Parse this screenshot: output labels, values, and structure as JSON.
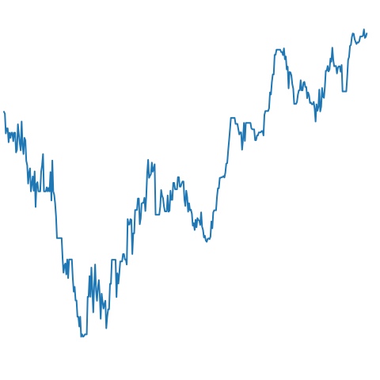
{
  "chart_data": {
    "type": "line",
    "title": "",
    "xlabel": "",
    "ylabel": "",
    "axes_visible": false,
    "grid": false,
    "legend": "none",
    "colors": {
      "background": "#ffffff",
      "line": "#1f77b4"
    },
    "xlim": [
      0,
      400
    ],
    "ylim": [
      0,
      100
    ],
    "series": [
      {
        "values": [
          73.1,
          72.5,
          66.7,
          68.2,
          68.2,
          64.1,
          66.9,
          65.4,
          66.9,
          66.9,
          64.4,
          66.9,
          66.9,
          61.1,
          61.9,
          69.4,
          66.5,
          63.8,
          61.7,
          70.2,
          63.2,
          60.6,
          65.4,
          64.7,
          58.6,
          57.3,
          51.9,
          55.1,
          56.4,
          49.6,
          51.8,
          54.0,
          49.8,
          55.5,
          45.0,
          51.8,
          52.3,
          49.6,
          49.6,
          49.6,
          55.4,
          57.4,
          60.6,
          49.6,
          49.6,
          49.6,
          50.8,
          49.6,
          50.6,
          49.6,
          55.3,
          46.9,
          58.7,
          49.6,
          48.6,
          46.1,
          42.2,
          35.8,
          35.8,
          35.8,
          35.8,
          35.8,
          35.8,
          30.0,
          25.6,
          27.7,
          28.3,
          25.1,
          29.5,
          24.0,
          29.5,
          29.5,
          29.5,
          29.5,
          23.9,
          20.0,
          21.4,
          17.4,
          17.4,
          12.6,
          12.6,
          9.7,
          12.6,
          6.7,
          7.4,
          6.7,
          6.9,
          7.4,
          7.4,
          7.4,
          18.5,
          18.5,
          24.6,
          18.5,
          27.1,
          20.6,
          13.9,
          21.8,
          28.0,
          20.4,
          17.3,
          21.2,
          23.4,
          18.9,
          12.0,
          19.4,
          17.1,
          15.0,
          16.4,
          17.3,
          9.2,
          12.6,
          14.8,
          14.8,
          22.3,
          22.3,
          29.4,
          29.4,
          29.4,
          29.4,
          29.4,
          18.4,
          25.4,
          22.4,
          25.4,
          28.9,
          28.9,
          28.9,
          31.1,
          31.1,
          29.5,
          29.5,
          28.0,
          41.4,
          39.8,
          39.8,
          41.4,
          41.2,
          31.1,
          37.2,
          37.2,
          44.1,
          44.1,
          44.1,
          47.5,
          47.5,
          39.9,
          41.6,
          46.0,
          46.2,
          46.2,
          47.7,
          43.8,
          48.2,
          55.1,
          58.9,
          53.6,
          54.2,
          54.7,
          58.1,
          55.4,
          56.3,
          57.6,
          42.7,
          42.7,
          42.7,
          42.7,
          42.7,
          45.1,
          50.0,
          48.3,
          47.6,
          45.2,
          43.7,
          43.7,
          43.7,
          48.4,
          43.6,
          43.9,
          49.8,
          47.1,
          47.1,
          52.1,
          52.1,
          50.2,
          50.2,
          50.2,
          53.8,
          53.8,
          51.0,
          51.0,
          51.9,
          52.5,
          52.5,
          47.2,
          45.3,
          49.8,
          47.9,
          43.6,
          46.1,
          44.0,
          44.2,
          43.0,
          39.5,
          40.2,
          38.2,
          41.2,
          39.0,
          41.7,
          41.1,
          41.0,
          39.7,
          43.4,
          39.2,
          38.2,
          36.0,
          36.5,
          35.1,
          34.7,
          35.6,
          35.7,
          35.5,
          36.2,
          40.7,
          38.7,
          43.4,
          44.0,
          44.0,
          44.0,
          47.9,
          50.5,
          50.5,
          53.6,
          53.6,
          53.8,
          53.8,
          54.1,
          53.7,
          55.1,
          57.8,
          57.9,
          61.5,
          64.6,
          67.9,
          71.3,
          71.3,
          71.3,
          71.3,
          71.3,
          69.5,
          69.5,
          69.5,
          67.9,
          66.4,
          67.0,
          67.0,
          61.9,
          64.9,
          69.8,
          64.5,
          69.8,
          69.8,
          69.8,
          69.8,
          69.8,
          69.8,
          68.2,
          67.9,
          67.9,
          67.9,
          64.7,
          64.7,
          66.1,
          66.1,
          67.0,
          67.0,
          67.0,
          67.4,
          67.4,
          66.1,
          72.1,
          73.3,
          73.3,
          73.3,
          73.3,
          74.1,
          78.8,
          78.2,
          81.8,
          84.1,
          84.1,
          89.9,
          89.9,
          91.4,
          91.4,
          91.4,
          91.4,
          91.4,
          90.7,
          90.7,
          89.8,
          91.8,
          88.6,
          89.4,
          85.6,
          86.4,
          80.0,
          84.8,
          84.7,
          83.8,
          81.2,
          79.9,
          75.4,
          75.4,
          75.4,
          76.0,
          78.1,
          79.4,
          79.4,
          82.4,
          79.4,
          79.4,
          81.7,
          81.9,
          80.4,
          80.4,
          77.1,
          78.8,
          77.9,
          75.7,
          75.8,
          75.3,
          75.3,
          76.0,
          74.0,
          70.2,
          75.3,
          73.4,
          74.5,
          79.6,
          73.2,
          74.6,
          80.1,
          77.5,
          77.2,
          80.5,
          85.2,
          85.2,
          86.6,
          85.0,
          85.6,
          88.8,
          87.9,
          92.0,
          88.4,
          86.5,
          86.6,
          86.6,
          84.4,
          86.1,
          86.5,
          86.5,
          84.9,
          86.9,
          79.1,
          79.1,
          79.1,
          79.1,
          79.1,
          83.3,
          88.4,
          89.3,
          92.5,
          92.8,
          95.1,
          96.2,
          96.1,
          94.5,
          93.7,
          93.1,
          93.6,
          93.5,
          93.9,
          95.3,
          95.3,
          95.3,
          95.6,
          97.4,
          94.9,
          95.2,
          96.2
        ]
      }
    ]
  }
}
